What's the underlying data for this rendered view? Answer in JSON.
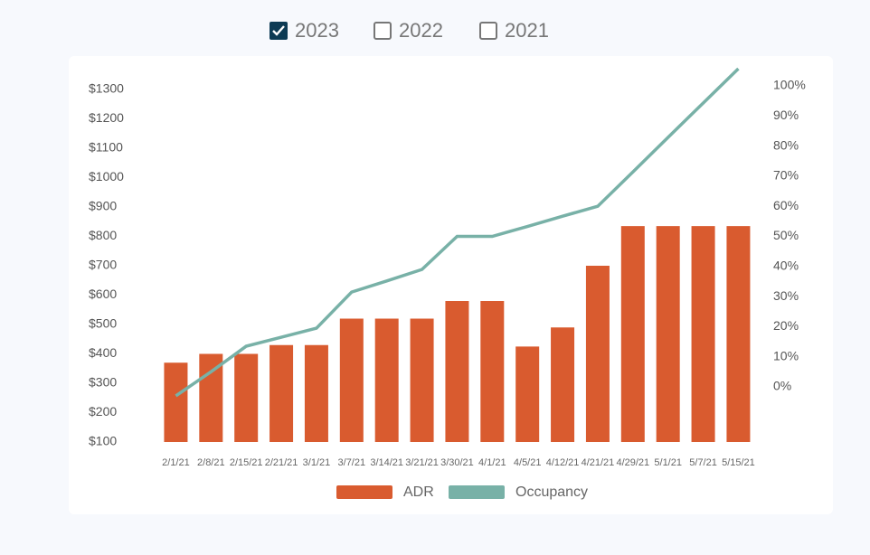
{
  "chart_data": {
    "type": "bar",
    "toggles": [
      {
        "label": "2023",
        "checked": true
      },
      {
        "label": "2022",
        "checked": false
      },
      {
        "label": "2021",
        "checked": false
      }
    ],
    "categories": [
      "2/1/21",
      "2/8/21",
      "2/15/21",
      "2/21/21",
      "3/1/21",
      "3/7/21",
      "3/14/21",
      "3/21/21",
      "3/30/21",
      "4/1/21",
      "4/5/21",
      "4/12/21",
      "4/21/21",
      "4/29/21",
      "5/1/21",
      "5/7/21",
      "5/15/21"
    ],
    "series": [
      {
        "name": "ADR",
        "type": "bar",
        "color": "#d95b2f",
        "values": [
          370,
          400,
          400,
          430,
          430,
          520,
          520,
          520,
          580,
          580,
          425,
          490,
          700,
          835,
          835,
          835,
          835
        ]
      },
      {
        "name": "Occupancy",
        "type": "line",
        "axis": "y2",
        "color": "#78b1a7",
        "values": [
          -3,
          5,
          13.5,
          16.5,
          19.5,
          31.5,
          35.2,
          39,
          50,
          50,
          53.3,
          56.7,
          60,
          71.4,
          82.9,
          94.3,
          105.7
        ]
      }
    ],
    "ylim": [
      100,
      1300
    ],
    "yticks": [
      {
        "value": 100,
        "label": "$100"
      },
      {
        "value": 200,
        "label": "$200"
      },
      {
        "value": 300,
        "label": "$300"
      },
      {
        "value": 400,
        "label": "$400"
      },
      {
        "value": 500,
        "label": "$500"
      },
      {
        "value": 600,
        "label": "$600"
      },
      {
        "value": 700,
        "label": "$700"
      },
      {
        "value": 800,
        "label": "$800"
      },
      {
        "value": 900,
        "label": "$900"
      },
      {
        "value": 1000,
        "label": "$1000"
      },
      {
        "value": 1100,
        "label": "$1100"
      },
      {
        "value": 1200,
        "label": "$1200"
      },
      {
        "value": 1300,
        "label": "$1300"
      }
    ],
    "y2lim": [
      0,
      100
    ],
    "y2ticks": [
      {
        "value": 0,
        "label": "0%"
      },
      {
        "value": 10,
        "label": "10%"
      },
      {
        "value": 20,
        "label": "20%"
      },
      {
        "value": 30,
        "label": "30%"
      },
      {
        "value": 40,
        "label": "40%"
      },
      {
        "value": 50,
        "label": "50%"
      },
      {
        "value": 60,
        "label": "60%"
      },
      {
        "value": 70,
        "label": "70%"
      },
      {
        "value": 80,
        "label": "80%"
      },
      {
        "value": 90,
        "label": "90%"
      },
      {
        "value": 100,
        "label": "100%"
      }
    ],
    "legend": "bottom"
  }
}
